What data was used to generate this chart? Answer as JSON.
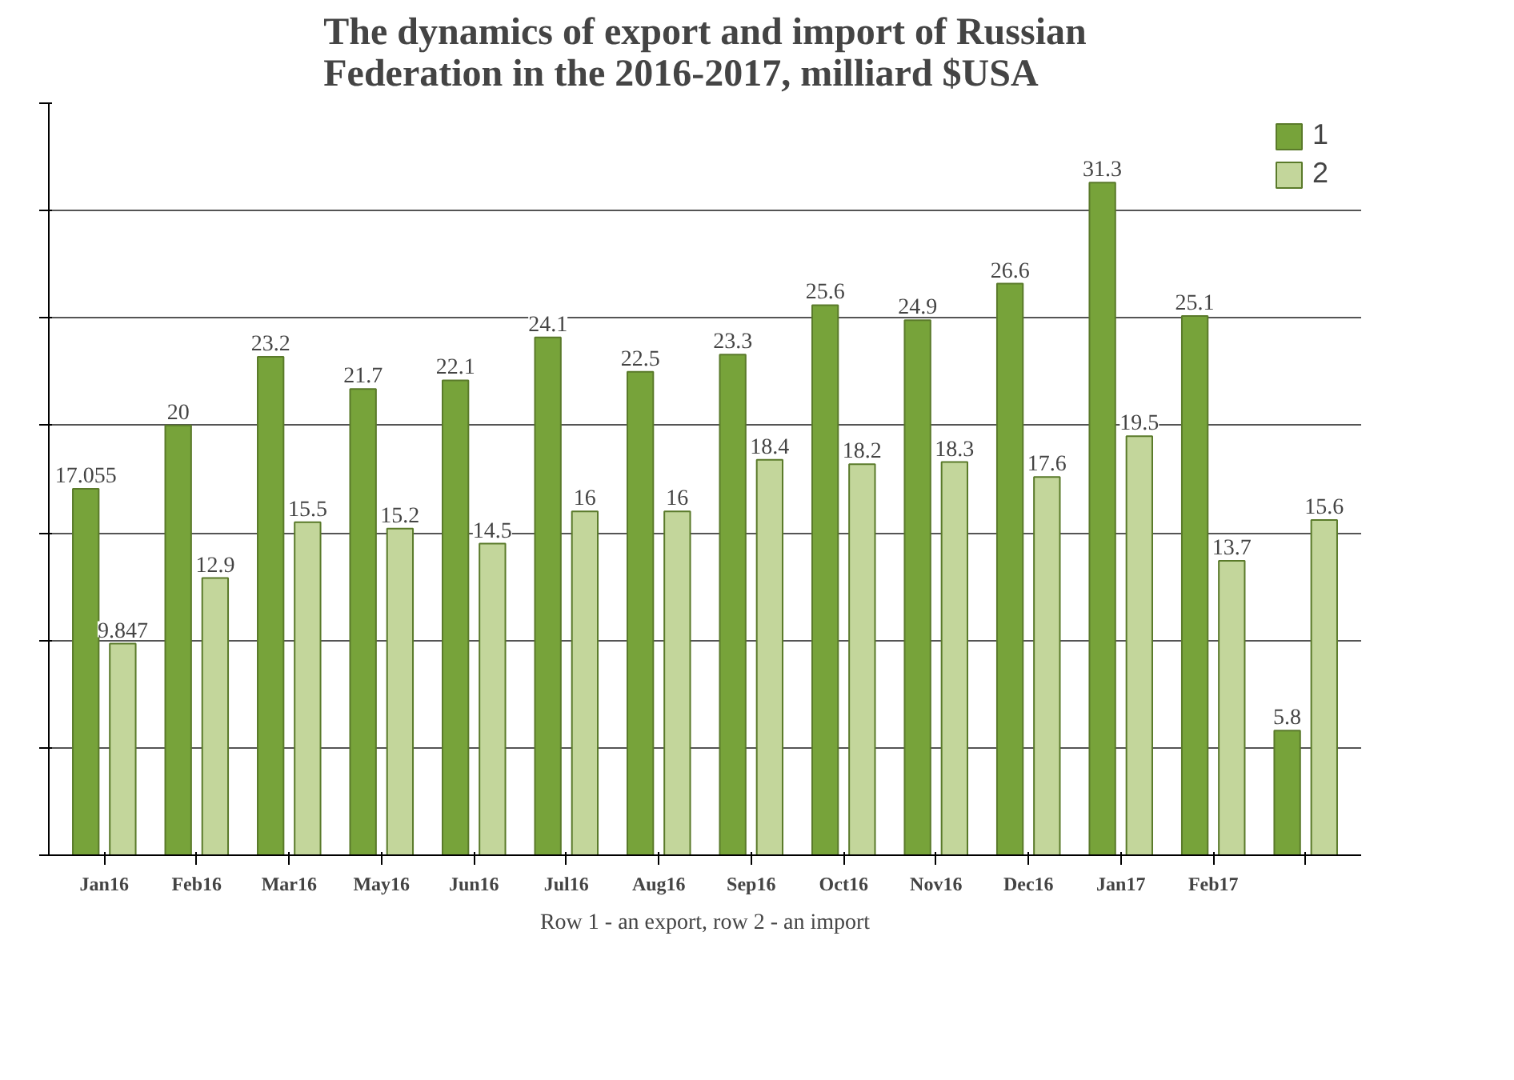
{
  "chart_data": {
    "type": "bar",
    "title": "The dynamics of export and import of Russian\nFederation in the 2016-2017, milliard $USA",
    "categories": [
      "Jan16",
      "Feb16",
      "Mar16",
      "May16",
      "Jun16",
      "Jul16",
      "Aug16",
      "Sep16",
      "Oct16",
      "Nov16",
      "Dec16",
      "Jan17",
      "Feb17",
      null
    ],
    "series": [
      {
        "name": "1",
        "color": "#77a33a",
        "values": [
          17.055,
          20,
          23.2,
          21.7,
          22.1,
          24.1,
          22.5,
          23.3,
          25.6,
          24.9,
          26.6,
          31.3,
          25.1,
          5.8
        ]
      },
      {
        "name": "2",
        "color": "#c3d69b",
        "values": [
          9.847,
          12.9,
          15.5,
          15.2,
          14.5,
          16,
          16,
          18.4,
          18.2,
          18.3,
          17.6,
          19.5,
          13.7,
          15.6
        ]
      }
    ],
    "ylim": [
      0,
      35
    ],
    "yticks": [
      {
        "value": 0,
        "label": null
      },
      {
        "value": 5,
        "label": null
      },
      {
        "value": 10,
        "label": null
      },
      {
        "value": 15,
        "label": null
      },
      {
        "value": 20,
        "label": null
      },
      {
        "value": 25,
        "label": null
      },
      {
        "value": 30,
        "label": null
      },
      {
        "value": 35,
        "label": null
      }
    ],
    "tick_labels": "x",
    "grid": "y",
    "legend": "right",
    "data_labels": true,
    "annotations": [
      "Row 1 - an export, row 2 - an import"
    ]
  }
}
